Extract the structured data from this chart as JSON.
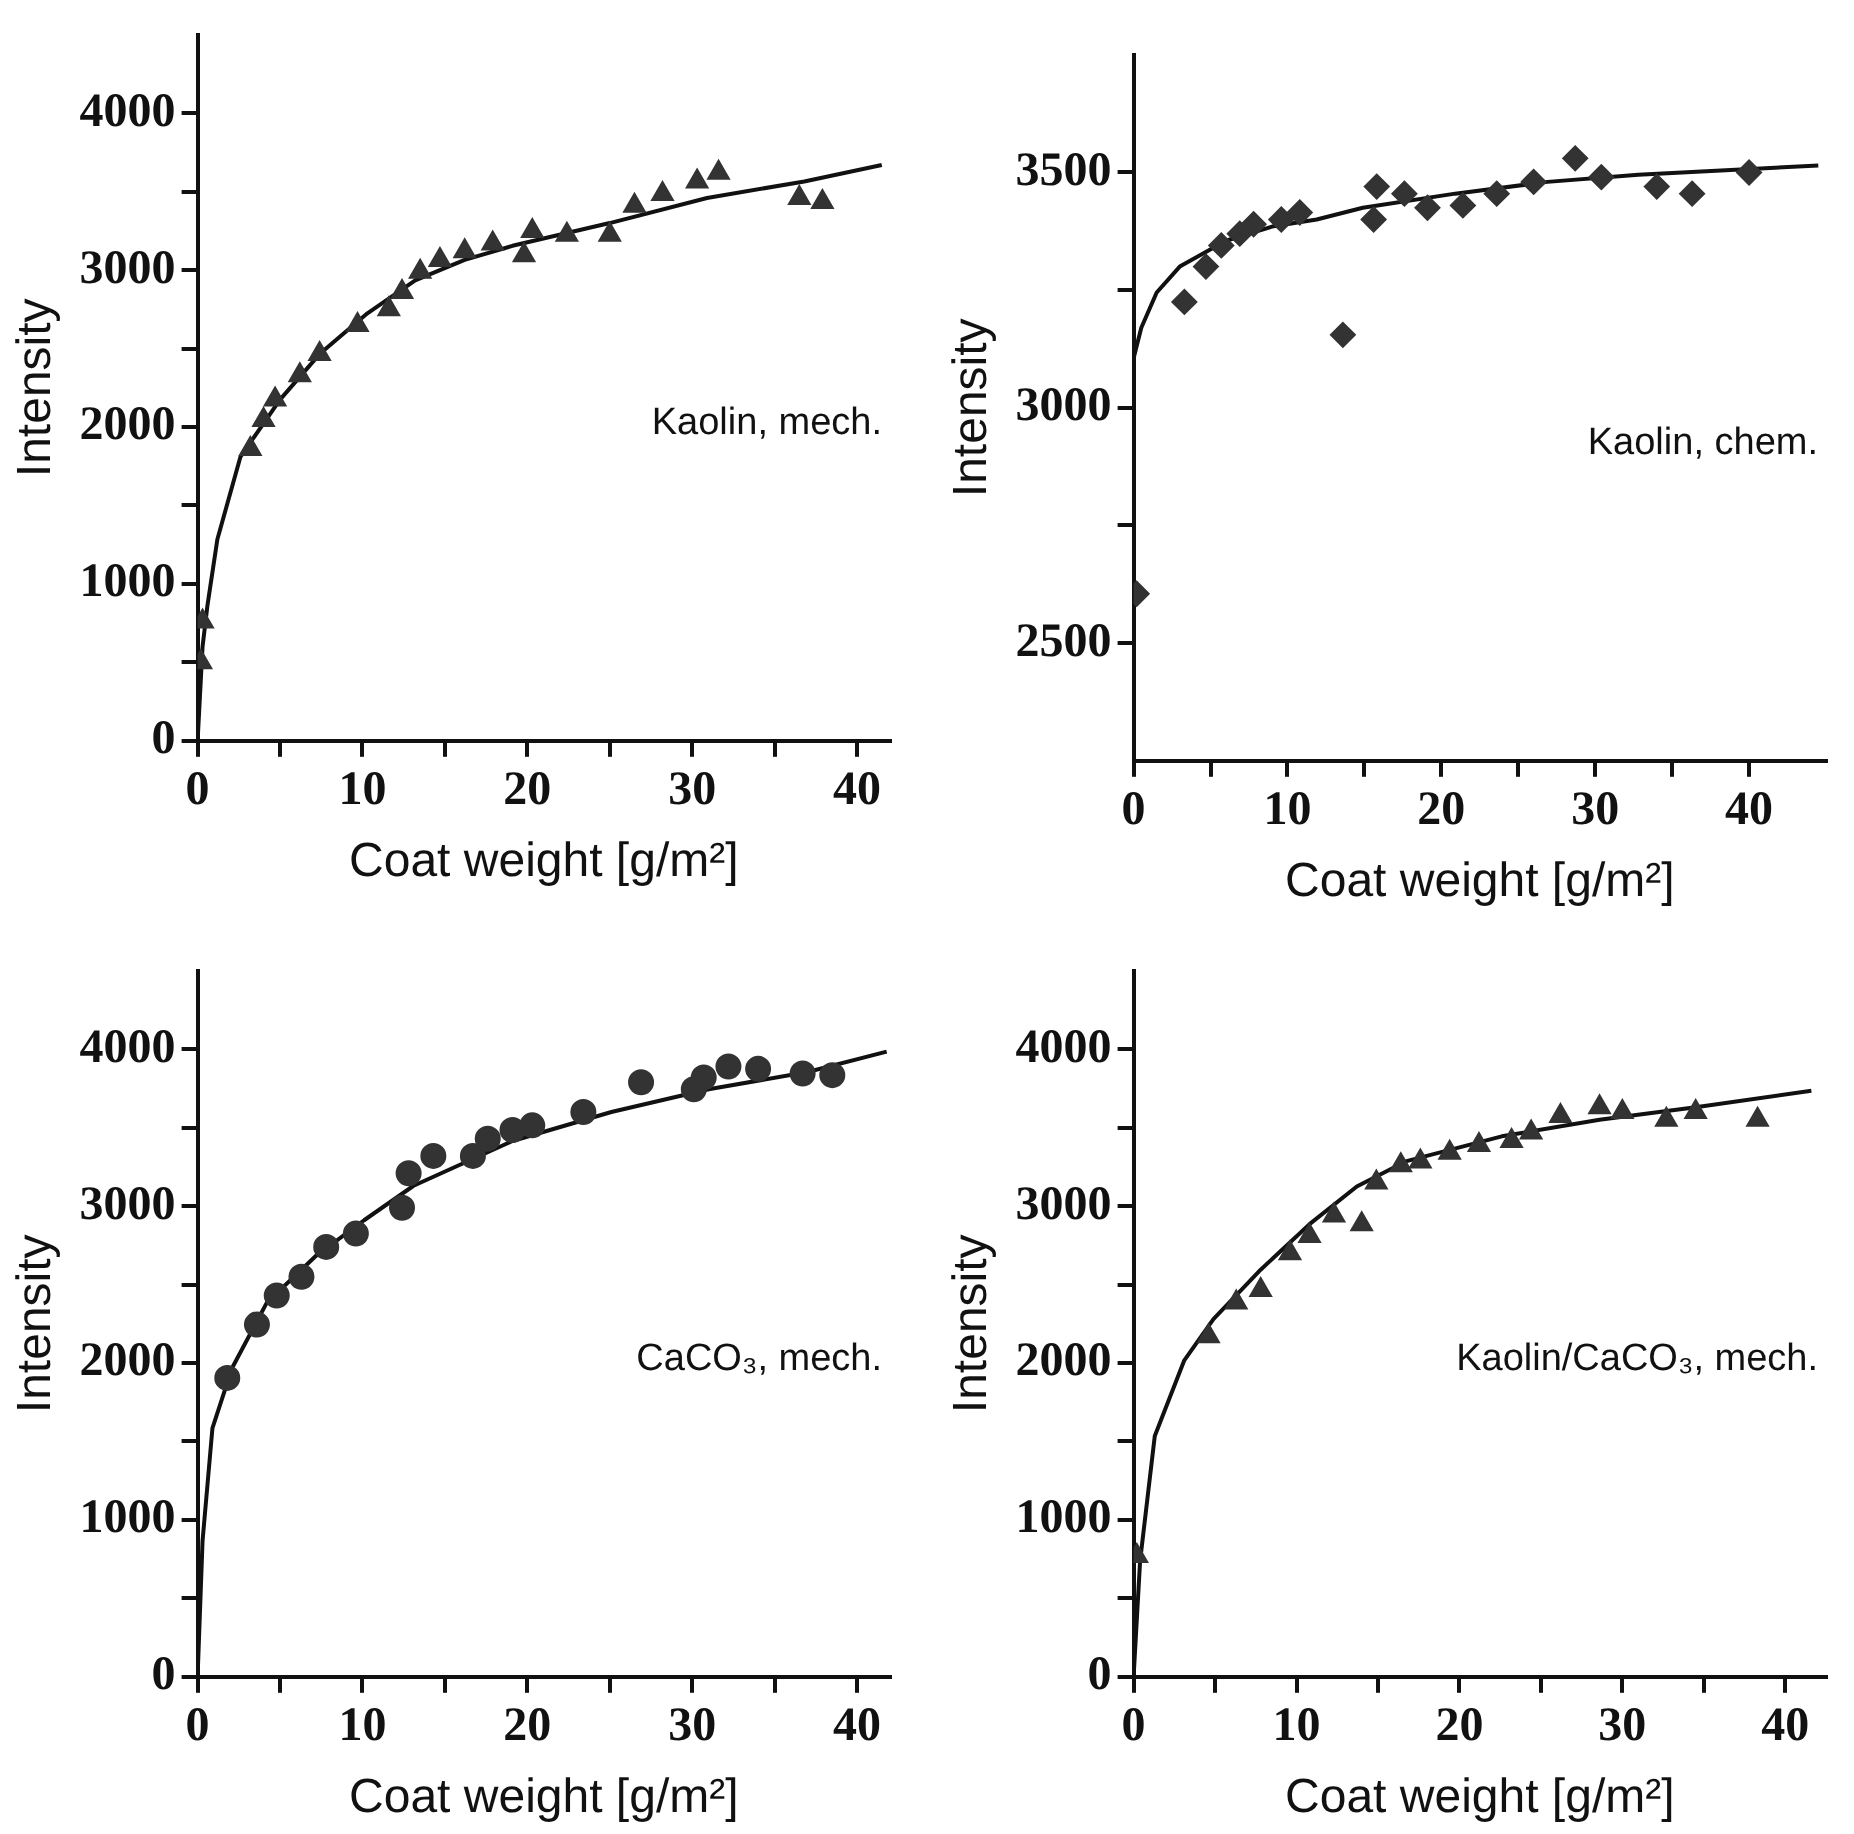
{
  "chart_data": [
    {
      "type": "scatter",
      "xlabel": "Coat weight [g/m²]",
      "ylabel": "Intensity",
      "annotations": [
        "Kaolin, mech."
      ],
      "xlim": [
        0,
        42
      ],
      "ylim": [
        0,
        4500
      ],
      "xticks": [
        0,
        {
          "value": 5,
          "label": null
        },
        10,
        {
          "value": 15,
          "label": null
        },
        20,
        {
          "value": 25,
          "label": null
        },
        30,
        {
          "value": 35,
          "label": null
        },
        40
      ],
      "yticks": [
        0,
        {
          "value": 500,
          "label": null
        },
        1000,
        {
          "value": 1500,
          "label": null
        },
        2000,
        {
          "value": 2500,
          "label": null
        },
        3000,
        {
          "value": 3500,
          "label": null
        },
        4000
      ],
      "grid": false,
      "legend": false,
      "series": [
        {
          "type": "scatter",
          "marker": "triangle",
          "color": "#333333",
          "x": [
            0.2,
            0.3,
            3.2,
            4,
            4.7,
            6.2,
            7.4,
            9.7,
            11.6,
            12.4,
            13.5,
            14.7,
            16.2,
            17.9,
            19.8,
            20.3,
            22.4,
            25,
            26.5,
            28.2,
            30.3,
            31.6,
            36.5,
            37.9
          ],
          "values": [
            500,
            760,
            1860,
            2045,
            2175,
            2330,
            2465,
            2650,
            2750,
            2860,
            2990,
            3065,
            3120,
            3170,
            3095,
            3250,
            3225,
            3225,
            3410,
            3485,
            3565,
            3620,
            3460,
            3435
          ]
        },
        {
          "type": "line",
          "marker": "none",
          "color": "#111111",
          "x": [
            0,
            0.3,
            0.6,
            1.2,
            2.6,
            5,
            7.4,
            10.3,
            13.2,
            16.2,
            19.1,
            25,
            30.9,
            36.8,
            41.5
          ],
          "values": [
            0,
            600,
            865,
            1285,
            1810,
            2175,
            2465,
            2725,
            2935,
            3065,
            3155,
            3300,
            3460,
            3565,
            3670
          ]
        }
      ]
    },
    {
      "type": "scatter",
      "xlabel": "Coat weight [g/m²]",
      "ylabel": "Intensity",
      "annotations": [
        "Kaolin, chem."
      ],
      "xlim": [
        0,
        45
      ],
      "ylim": [
        2250,
        3750
      ],
      "xticks": [
        0,
        {
          "value": 5,
          "label": null
        },
        10,
        {
          "value": 15,
          "label": null
        },
        20,
        {
          "value": 25,
          "label": null
        },
        30,
        {
          "value": 35,
          "label": null
        },
        40
      ],
      "yticks": [
        2500,
        {
          "value": 2750,
          "label": null
        },
        3000,
        {
          "value": 3250,
          "label": null
        },
        3500
      ],
      "grid": false,
      "legend": false,
      "series": [
        {
          "type": "scatter",
          "marker": "diamond",
          "color": "#333333",
          "x": [
            0.2,
            3.3,
            4.7,
            5.7,
            6.9,
            7.8,
            9.6,
            10.8,
            13.6,
            15.6,
            15.8,
            17.6,
            19.1,
            21.4,
            23.6,
            26,
            28.7,
            30.4,
            34,
            36.3,
            40
          ],
          "values": [
            2605,
            3225,
            3300,
            3345,
            3370,
            3390,
            3400,
            3415,
            3155,
            3400,
            3470,
            3455,
            3425,
            3430,
            3455,
            3480,
            3530,
            3490,
            3470,
            3455,
            3500
          ]
        },
        {
          "type": "line",
          "marker": "none",
          "color": "#111111",
          "x": [
            0,
            0.5,
            1.5,
            3,
            6,
            9,
            11.9,
            14.9,
            20.9,
            26.9,
            32.8,
            38.8,
            44.5
          ],
          "values": [
            3105,
            3170,
            3245,
            3300,
            3355,
            3385,
            3400,
            3425,
            3455,
            3480,
            3495,
            3505,
            3515
          ]
        }
      ]
    },
    {
      "type": "scatter",
      "xlabel": "Coat weight [g/m²]",
      "ylabel": "Intensity",
      "annotations": [
        "CaCO₃, mech."
      ],
      "xlim": [
        0,
        42
      ],
      "ylim": [
        0,
        4500
      ],
      "xticks": [
        0,
        {
          "value": 5,
          "label": null
        },
        10,
        {
          "value": 15,
          "label": null
        },
        20,
        {
          "value": 25,
          "label": null
        },
        30,
        {
          "value": 35,
          "label": null
        },
        40
      ],
      "yticks": [
        0,
        {
          "value": 500,
          "label": null
        },
        1000,
        {
          "value": 1500,
          "label": null
        },
        2000,
        {
          "value": 2500,
          "label": null
        },
        3000,
        {
          "value": 3500,
          "label": null
        },
        4000
      ],
      "grid": false,
      "legend": false,
      "series": [
        {
          "type": "scatter",
          "marker": "circle",
          "color": "#333333",
          "x": [
            1.8,
            3.6,
            4.8,
            6.3,
            7.8,
            9.6,
            12.4,
            12.8,
            14.3,
            16.7,
            17.6,
            19.1,
            20.3,
            23.4,
            26.9,
            30.1,
            30.7,
            32.2,
            34,
            36.7,
            38.5
          ],
          "values": [
            1905,
            2245,
            2430,
            2550,
            2740,
            2825,
            2990,
            3210,
            3320,
            3320,
            3430,
            3485,
            3515,
            3600,
            3790,
            3745,
            3820,
            3890,
            3875,
            3845,
            3835
          ]
        },
        {
          "type": "line",
          "marker": "none",
          "color": "#111111",
          "x": [
            0,
            0.3,
            0.9,
            2.1,
            4.2,
            7.2,
            10.1,
            13.1,
            19.1,
            25.1,
            31,
            37,
            41.8
          ],
          "values": [
            0,
            866,
            1585,
            1970,
            2385,
            2685,
            2910,
            3130,
            3415,
            3600,
            3745,
            3855,
            3985
          ]
        }
      ]
    },
    {
      "type": "scatter",
      "xlabel": "Coat weight [g/m²]",
      "ylabel": "Intensity",
      "annotations": [
        "Kaolin/CaCO₃, mech."
      ],
      "xlim": [
        0,
        42.5
      ],
      "ylim": [
        0,
        4500
      ],
      "xticks": [
        0,
        {
          "value": 5,
          "label": null
        },
        10,
        {
          "value": 15,
          "label": null
        },
        20,
        {
          "value": 25,
          "label": null
        },
        30,
        {
          "value": 35,
          "label": null
        },
        40
      ],
      "yticks": [
        0,
        {
          "value": 500,
          "label": null
        },
        1000,
        {
          "value": 1500,
          "label": null
        },
        2000,
        {
          "value": 2500,
          "label": null
        },
        3000,
        {
          "value": 3500,
          "label": null
        },
        4000
      ],
      "grid": false,
      "legend": false,
      "series": [
        {
          "type": "scatter",
          "marker": "triangle",
          "color": "#333333",
          "x": [
            0.2,
            4.6,
            6.3,
            7.8,
            9.6,
            10.8,
            12.3,
            14,
            14.9,
            16.4,
            17.6,
            19.4,
            21.2,
            23.2,
            24.4,
            26.2,
            28.6,
            30,
            32.7,
            34.5,
            38.3
          ],
          "values": [
            770,
            2170,
            2385,
            2465,
            2700,
            2810,
            2940,
            2885,
            3150,
            3260,
            3285,
            3340,
            3390,
            3415,
            3470,
            3575,
            3630,
            3600,
            3550,
            3600,
            3550
          ]
        },
        {
          "type": "line",
          "marker": "none",
          "color": "#111111",
          "x": [
            0,
            0.4,
            1.3,
            3.1,
            4.9,
            7.8,
            10.8,
            13.7,
            16.7,
            22.6,
            28.6,
            34.5,
            41.6
          ],
          "values": [
            0,
            740,
            1535,
            2015,
            2280,
            2595,
            2885,
            3125,
            3285,
            3445,
            3550,
            3630,
            3735
          ]
        }
      ]
    }
  ]
}
